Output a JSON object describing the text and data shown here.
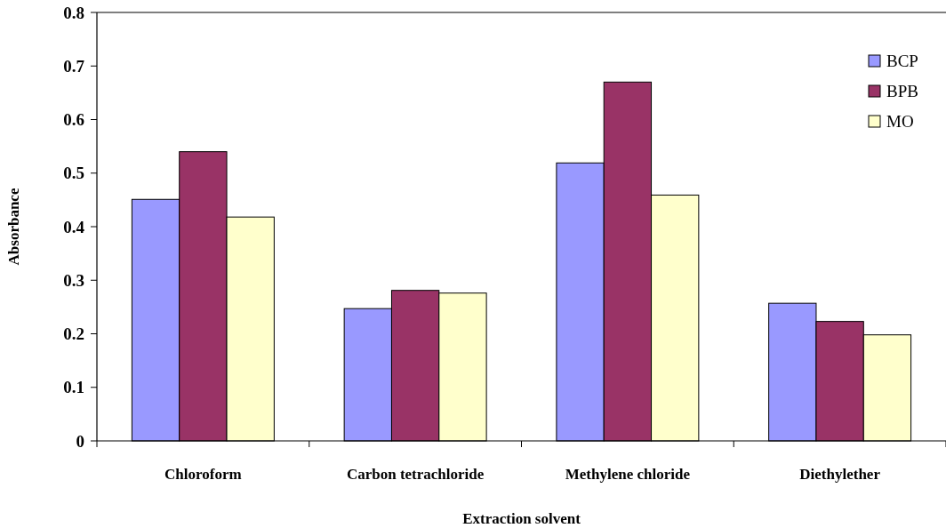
{
  "chart_data": {
    "type": "bar",
    "xlabel": "Extraction solvent",
    "ylabel": "Absorbance",
    "categories": [
      "Chloroform",
      "Carbon tetrachloride",
      "Methylene chloride",
      "Diethylether"
    ],
    "series": [
      {
        "name": "BCP",
        "color": "#9999ff",
        "values": [
          0.451,
          0.247,
          0.519,
          0.257
        ]
      },
      {
        "name": "BPB",
        "color": "#993366",
        "values": [
          0.54,
          0.281,
          0.67,
          0.223
        ]
      },
      {
        "name": "MO",
        "color": "#ffffcc",
        "values": [
          0.418,
          0.276,
          0.459,
          0.198
        ]
      }
    ],
    "ylim": [
      0,
      0.8
    ],
    "yticks": [
      0,
      0.1,
      0.2,
      0.3,
      0.4,
      0.5,
      0.6,
      0.7,
      0.8
    ],
    "grid": false,
    "legend": "top right"
  }
}
